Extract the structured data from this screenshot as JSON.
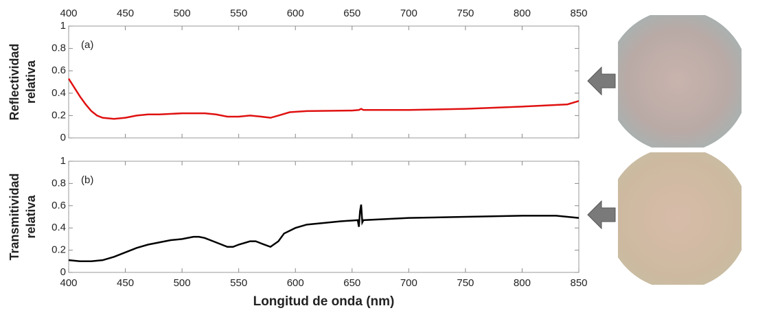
{
  "chart_data": [
    {
      "type": "line",
      "ylabel": [
        "Reflectividad",
        "relativa"
      ],
      "annotation": "(a)",
      "x": [
        400,
        405,
        410,
        415,
        420,
        425,
        430,
        440,
        450,
        460,
        470,
        480,
        500,
        520,
        530,
        540,
        550,
        560,
        570,
        578,
        585,
        595,
        610,
        650,
        656,
        658,
        660,
        700,
        750,
        800,
        820,
        840,
        850
      ],
      "series": [
        {
          "color": "#e01010",
          "values": [
            0.53,
            0.45,
            0.37,
            0.3,
            0.24,
            0.2,
            0.18,
            0.17,
            0.18,
            0.2,
            0.21,
            0.21,
            0.22,
            0.22,
            0.21,
            0.19,
            0.19,
            0.2,
            0.19,
            0.18,
            0.2,
            0.23,
            0.24,
            0.245,
            0.25,
            0.26,
            0.25,
            0.25,
            0.26,
            0.28,
            0.29,
            0.3,
            0.33
          ]
        }
      ],
      "xlim": [
        400,
        850
      ],
      "xticks": [
        400,
        450,
        500,
        550,
        600,
        650,
        700,
        750,
        800,
        850
      ],
      "ylim": [
        0,
        1
      ],
      "yticks": [
        0,
        0.2,
        0.4,
        0.6,
        0.8,
        1
      ]
    },
    {
      "type": "line",
      "ylabel": [
        "Transmitividad",
        "relativa"
      ],
      "annotation": "(b)",
      "xlabel": "Longitud de onda (nm)",
      "x": [
        400,
        410,
        420,
        430,
        440,
        450,
        460,
        470,
        480,
        490,
        500,
        510,
        515,
        520,
        530,
        540,
        545,
        550,
        560,
        565,
        570,
        578,
        585,
        590,
        600,
        610,
        620,
        640,
        655,
        656,
        657,
        658,
        659,
        660,
        680,
        700,
        750,
        800,
        830,
        850
      ],
      "series": [
        {
          "color": "#000000",
          "values": [
            0.11,
            0.1,
            0.1,
            0.11,
            0.14,
            0.18,
            0.22,
            0.25,
            0.27,
            0.29,
            0.3,
            0.32,
            0.32,
            0.31,
            0.27,
            0.23,
            0.23,
            0.25,
            0.28,
            0.28,
            0.26,
            0.23,
            0.28,
            0.35,
            0.4,
            0.43,
            0.44,
            0.46,
            0.47,
            0.41,
            0.55,
            0.61,
            0.45,
            0.47,
            0.48,
            0.49,
            0.5,
            0.51,
            0.51,
            0.49
          ]
        }
      ],
      "xlim": [
        400,
        850
      ],
      "xticks": [
        400,
        450,
        500,
        550,
        600,
        650,
        700,
        750,
        800,
        850
      ],
      "ylim": [
        0,
        1
      ],
      "yticks": [
        0,
        0.2,
        0.4,
        0.6,
        0.8,
        1
      ]
    }
  ]
}
